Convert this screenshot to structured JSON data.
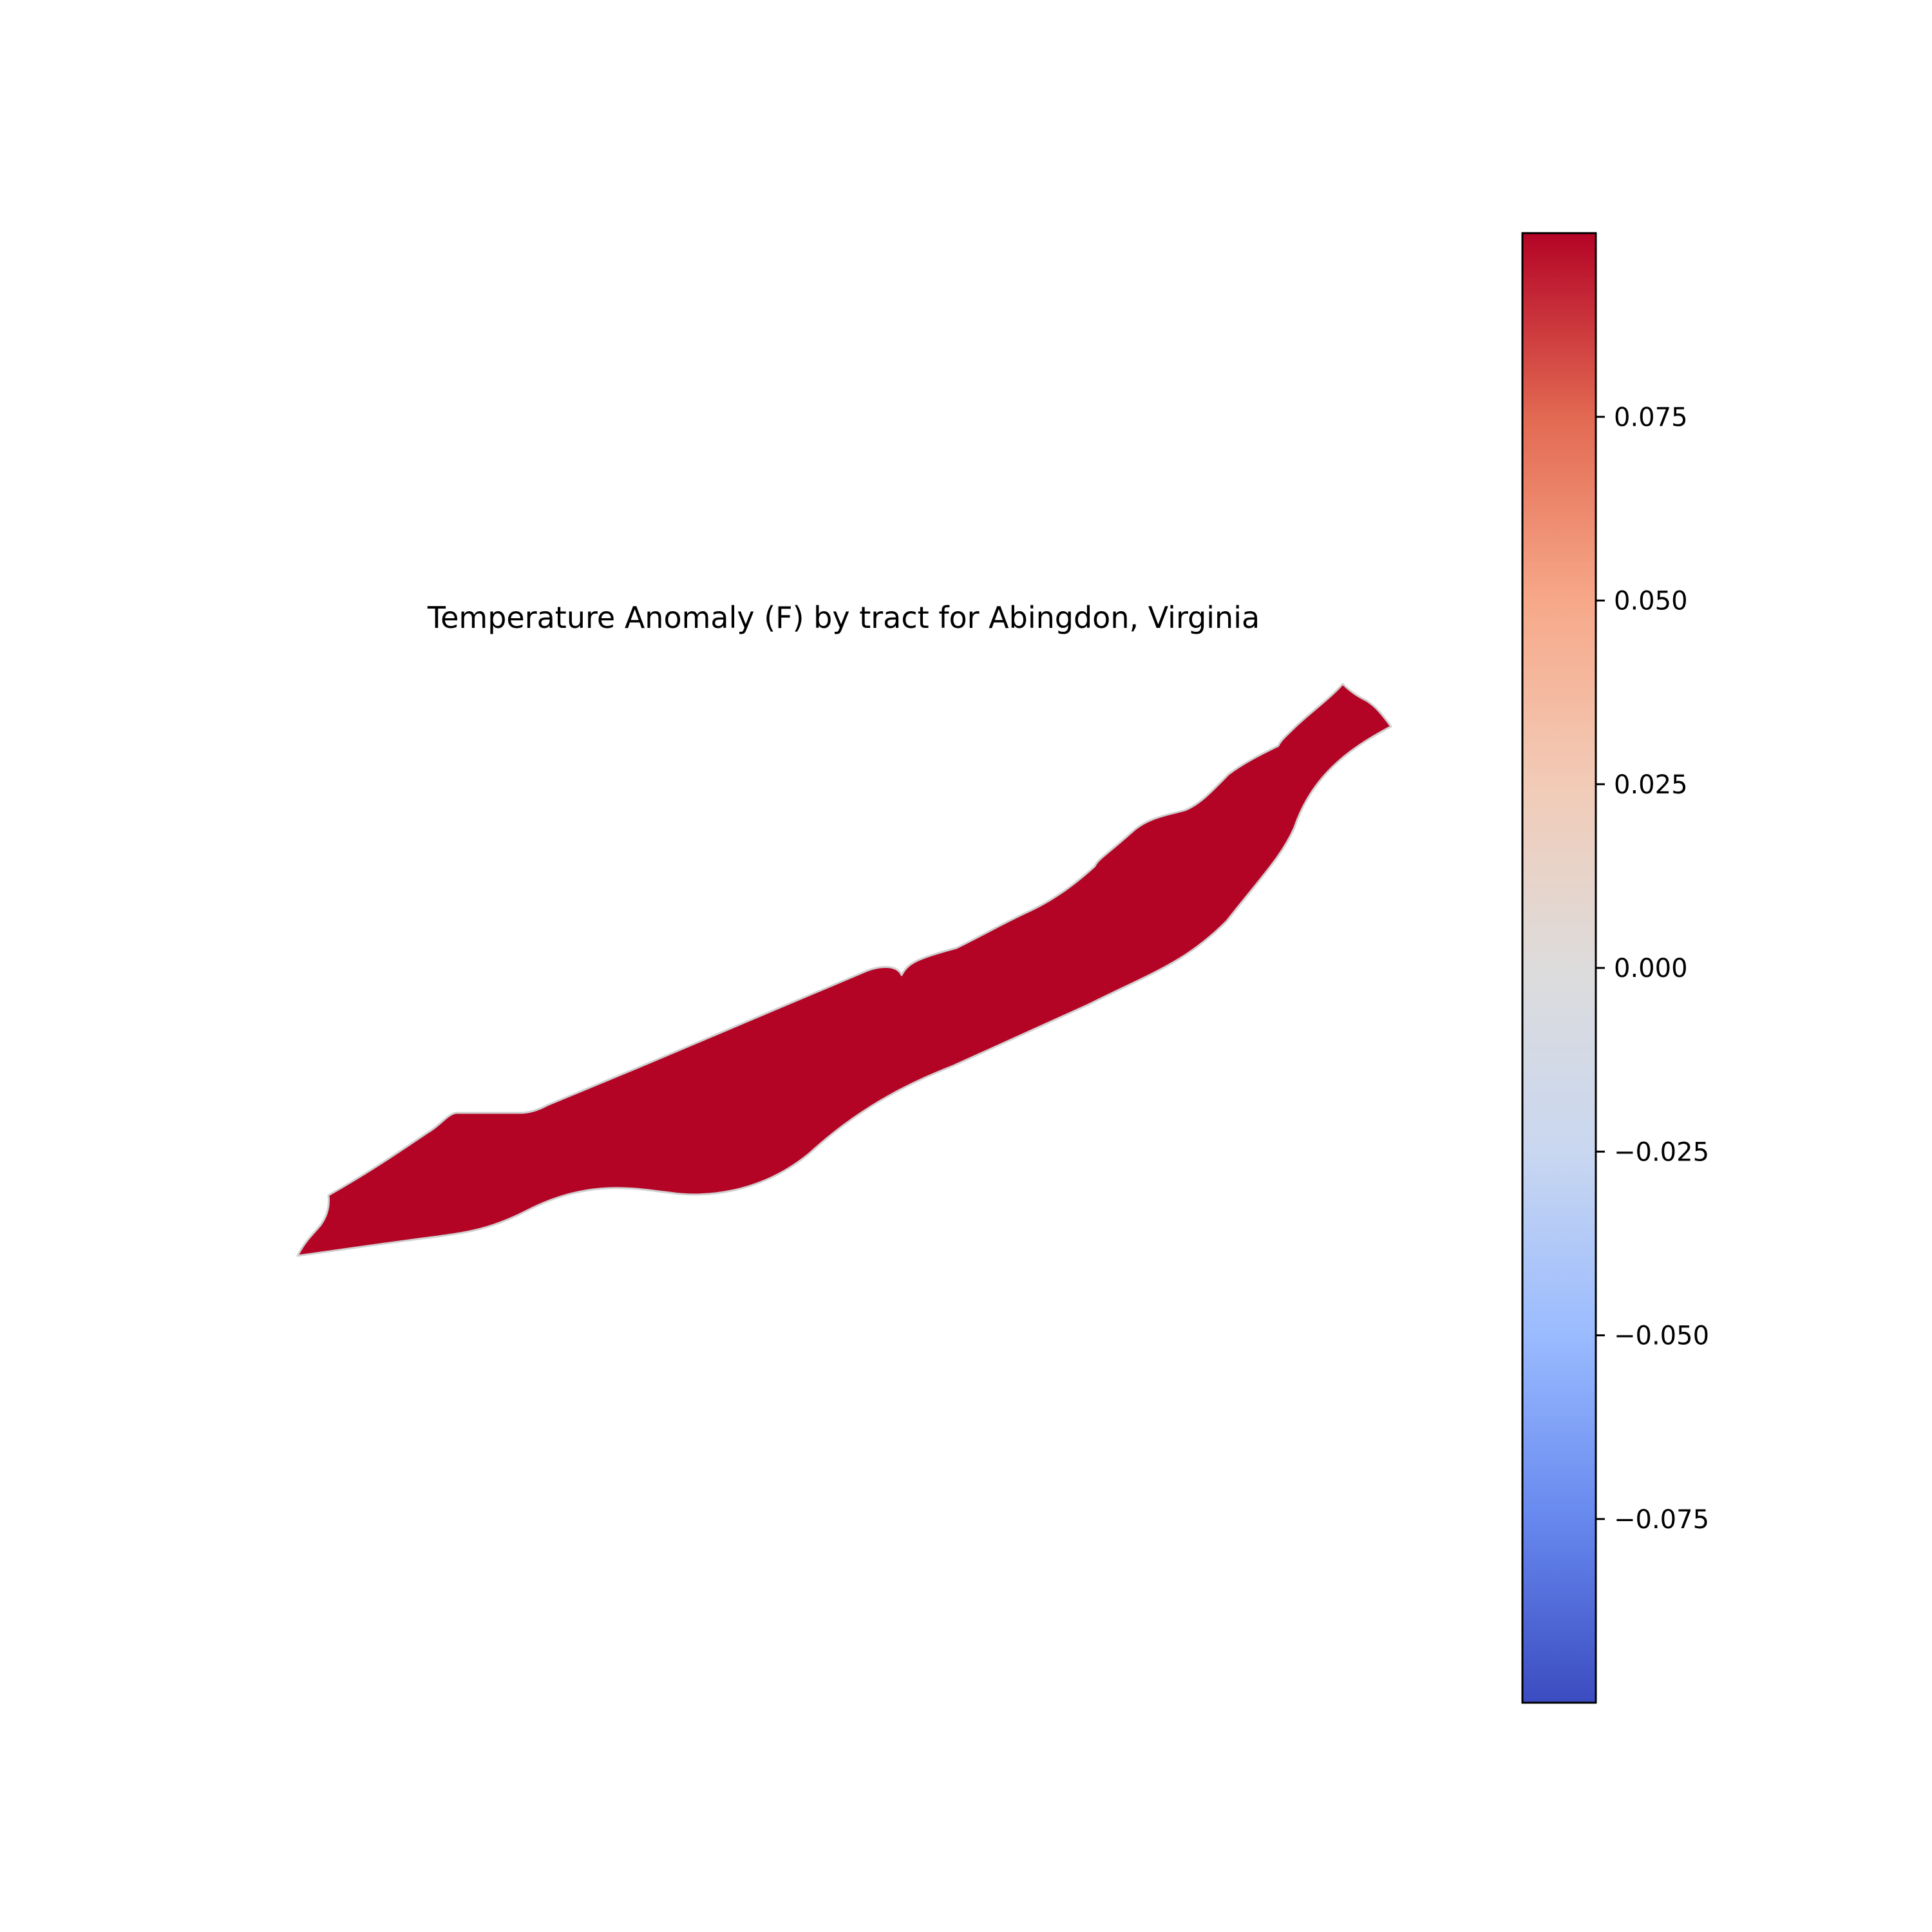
{
  "chart_data": {
    "type": "choropleth",
    "title": "Temperature Anomaly (F) by tract for Abingdon, Virginia",
    "colormap": "coolwarm",
    "colorbar": {
      "vmin": -0.1,
      "vmax": 0.1,
      "ticks": [
        0.075,
        0.05,
        0.025,
        0.0,
        -0.025,
        -0.05,
        -0.075
      ],
      "tick_labels": [
        "0.075",
        "0.050",
        "0.025",
        "0.000",
        "−0.025",
        "−0.050",
        "−0.075"
      ],
      "colors": [
        "#3b4cc0",
        "#6788ee",
        "#9abbff",
        "#c9d7f0",
        "#dddcdc",
        "#f2cbb7",
        "#f7a889",
        "#e26952",
        "#b40426"
      ]
    },
    "regions": [
      {
        "value": 0.1,
        "fill": "#b40426",
        "edge": "#d0d0d0"
      }
    ]
  }
}
